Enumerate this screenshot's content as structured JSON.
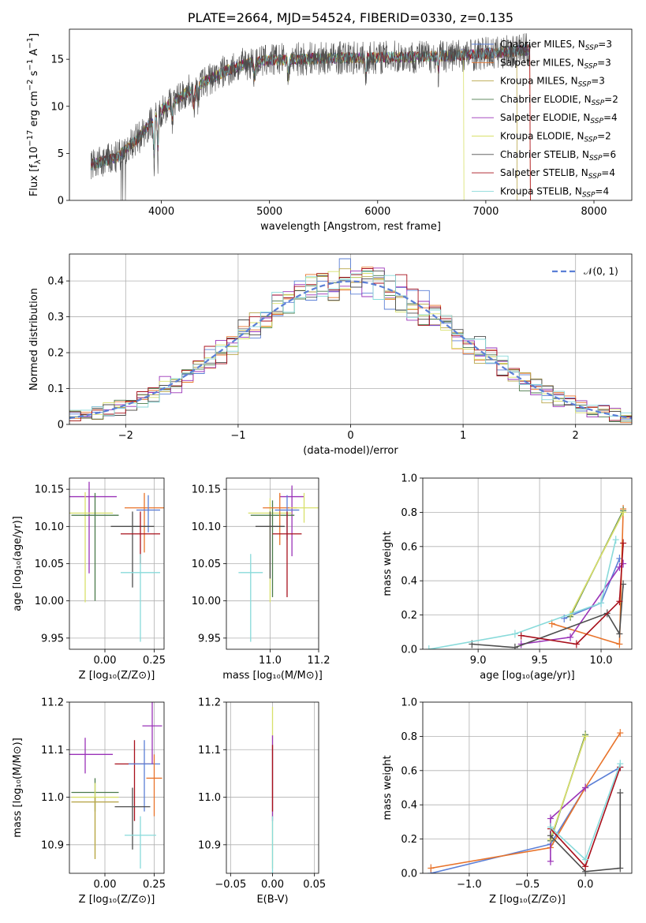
{
  "colors": {
    "Chabrier MILES": "#5b7fd6",
    "Salpeter MILES": "#e8732a",
    "Kroupa MILES": "#b8a64a",
    "Chabrier ELODIE": "#4a7a4a",
    "Salpeter ELODIE": "#9a33b8",
    "Kroupa ELODIE": "#d8e06a",
    "Chabrier STELIB": "#4d4d4d",
    "Salpeter STELIB": "#a8101c",
    "Kroupa STELIB": "#88dada"
  },
  "chart_data": [
    {
      "id": "spectrum",
      "type": "line",
      "title": "PLATE=2664, MJD=54524, FIBERID=0330, z=0.135",
      "xlabel": "wavelength [Angstrom, rest frame]",
      "ylabel_pre": "Flux [f",
      "ylabel_sub": "λ",
      "ylabel_mid": "10",
      "ylabel_sup": "−17",
      "ylabel_rest": " erg cm",
      "ylabel_sup2": "−2",
      "ylabel_rest2": " s",
      "ylabel_sup3": "−1",
      "ylabel_rest3": " A",
      "ylabel_sup4": "−1",
      "ylabel_end": "]",
      "xlim": [
        3150,
        8350
      ],
      "ylim": [
        0,
        18.2
      ],
      "xticks": [
        4000,
        5000,
        6000,
        7000,
        8000
      ],
      "yticks": [
        0,
        5,
        10,
        15
      ],
      "continuum": [
        [
          3350,
          3.8
        ],
        [
          3600,
          4.6
        ],
        [
          3800,
          6.8
        ],
        [
          4000,
          9.6
        ],
        [
          4200,
          11.2
        ],
        [
          4400,
          12.6
        ],
        [
          4600,
          13.8
        ],
        [
          4800,
          14.6
        ],
        [
          5000,
          14.9
        ],
        [
          5200,
          15.0
        ],
        [
          5500,
          15.1
        ],
        [
          6000,
          15.2
        ],
        [
          6500,
          15.3
        ],
        [
          7000,
          15.6
        ],
        [
          7400,
          16.0
        ]
      ],
      "legend": [
        {
          "label": "Chabrier MILES, N",
          "sub": "SSP",
          "end": "=3",
          "key": "Chabrier MILES"
        },
        {
          "label": "Salpeter MILES, N",
          "sub": "SSP",
          "end": "=3",
          "key": "Salpeter MILES"
        },
        {
          "label": "Kroupa MILES, N",
          "sub": "SSP",
          "end": "=3",
          "key": "Kroupa MILES"
        },
        {
          "label": "Chabrier ELODIE, N",
          "sub": "SSP",
          "end": "=2",
          "key": "Chabrier ELODIE"
        },
        {
          "label": "Salpeter ELODIE, N",
          "sub": "SSP",
          "end": "=4",
          "key": "Salpeter ELODIE"
        },
        {
          "label": "Kroupa ELODIE, N",
          "sub": "SSP",
          "end": "=2",
          "key": "Kroupa ELODIE"
        },
        {
          "label": "Chabrier STELIB, N",
          "sub": "SSP",
          "end": "=6",
          "key": "Chabrier STELIB"
        },
        {
          "label": "Salpeter STELIB, N",
          "sub": "SSP",
          "end": "=4",
          "key": "Salpeter STELIB"
        },
        {
          "label": "Kroupa STELIB, N",
          "sub": "SSP",
          "end": "=4",
          "key": "Kroupa STELIB"
        }
      ]
    },
    {
      "id": "residuals",
      "type": "line",
      "xlabel": "(data-model)/error",
      "ylabel": "Normed distribution",
      "xlim": [
        -2.5,
        2.5
      ],
      "ylim": [
        0,
        0.475
      ],
      "xticks": [
        -2,
        -1,
        0,
        1,
        2
      ],
      "yticks": [
        0.0,
        0.1,
        0.2,
        0.3,
        0.4
      ],
      "grid": true,
      "legend_label": "𝒩(0, 1)",
      "legend_placement": "top-right",
      "gaussian_color": "#5b7fd6",
      "bin_width": 0.1
    },
    {
      "id": "age-vs-z",
      "type": "scatter",
      "xlabel": "Z [log₁₀(Z/Z⊙)]",
      "ylabel": "age  [log₁₀(age/yr)]",
      "xlim": [
        -0.18,
        0.3
      ],
      "ylim": [
        9.935,
        10.165
      ],
      "xticks": [
        0.0,
        0.25
      ],
      "xticklabels": [
        "0.00",
        "0.25"
      ],
      "yticks": [
        9.95,
        10.0,
        10.05,
        10.1,
        10.15
      ],
      "yticklabels": [
        "9.95",
        "10.00",
        "10.05",
        "10.10",
        "10.15"
      ],
      "grid": true,
      "points": [
        {
          "key": "Salpeter ELODIE",
          "x": -0.08,
          "y": 10.14,
          "xerr": 0.14,
          "yerr": [
            0.103,
            0.02
          ]
        },
        {
          "key": "Kroupa ELODIE",
          "x": -0.1,
          "y": 10.118,
          "xerr": 0.14,
          "yerr": [
            0.12,
            0.028
          ]
        },
        {
          "key": "Chabrier ELODIE",
          "x": -0.05,
          "y": 10.115,
          "xerr": 0.12,
          "yerr": [
            0.115,
            0.03
          ]
        },
        {
          "key": "Salpeter MILES",
          "x": 0.2,
          "y": 10.125,
          "xerr": 0.1,
          "yerr": [
            0.06,
            0.02
          ]
        },
        {
          "key": "Chabrier MILES",
          "x": 0.22,
          "y": 10.122,
          "xerr": 0.06,
          "yerr": [
            0.03,
            0.02
          ]
        },
        {
          "key": "Chabrier STELIB",
          "x": 0.14,
          "y": 10.1,
          "xerr": 0.11,
          "yerr": [
            0.082,
            0.02
          ]
        },
        {
          "key": "Salpeter STELIB",
          "x": 0.18,
          "y": 10.09,
          "xerr": 0.1,
          "yerr": [
            0.04,
            0.03
          ]
        },
        {
          "key": "Kroupa STELIB",
          "x": 0.18,
          "y": 10.038,
          "xerr": 0.1,
          "yerr": [
            0.093,
            0.025
          ]
        }
      ]
    },
    {
      "id": "age-vs-mass",
      "type": "scatter",
      "xlabel": "mass [log₁₀(M/M⊙)]",
      "xlim": [
        10.82,
        11.2
      ],
      "ylim": [
        9.935,
        10.165
      ],
      "xticks": [
        11.0,
        11.2
      ],
      "xticklabels": [
        "11.0",
        "11.2"
      ],
      "yticks": [
        9.95,
        10.0,
        10.05,
        10.1,
        10.15
      ],
      "yticklabels": [
        "9.95",
        "10.00",
        "10.05",
        "10.10",
        "10.15"
      ],
      "grid": true,
      "points": [
        {
          "key": "Salpeter ELODIE",
          "x": 11.09,
          "y": 10.14,
          "xerr": 0.05,
          "yerr": [
            0.08,
            0.015
          ]
        },
        {
          "key": "Kroupa ELODIE",
          "x": 11.0,
          "y": 10.118,
          "xerr": 0.09,
          "yerr": [
            0.12,
            0.02
          ]
        },
        {
          "key": "Chabrier ELODIE",
          "x": 11.01,
          "y": 10.115,
          "xerr": 0.09,
          "yerr": [
            0.11,
            0.02
          ]
        },
        {
          "key": "Salpeter MILES",
          "x": 11.04,
          "y": 10.125,
          "xerr": 0.07,
          "yerr": [
            0.05,
            0.02
          ]
        },
        {
          "key": "Chabrier MILES",
          "x": 11.07,
          "y": 10.122,
          "xerr": 0.05,
          "yerr": [
            0.04,
            0.02
          ]
        },
        {
          "key": "Chabrier STELIB",
          "x": 11.0,
          "y": 10.1,
          "xerr": 0.06,
          "yerr": [
            0.07,
            0.02
          ]
        },
        {
          "key": "Salpeter STELIB",
          "x": 11.07,
          "y": 10.09,
          "xerr": 0.06,
          "yerr": [
            0.085,
            0.03
          ]
        },
        {
          "key": "Kroupa STELIB",
          "x": 10.92,
          "y": 10.038,
          "xerr": 0.05,
          "yerr": [
            0.093,
            0.025
          ]
        },
        {
          "key": "Kroupa ELODIE",
          "x": 11.14,
          "y": 10.125,
          "xerr": 0.06,
          "yerr": [
            0.02,
            0.02
          ]
        }
      ]
    },
    {
      "id": "massweight-vs-age",
      "type": "line",
      "xlabel": "age  [log₁₀(age/yr)]",
      "ylabel": "mass weight",
      "xlim": [
        8.55,
        10.25
      ],
      "ylim": [
        0.0,
        1.0
      ],
      "xticks": [
        9.0,
        9.5,
        10.0
      ],
      "xticklabels": [
        "9.0",
        "9.5",
        "10.0"
      ],
      "yticks": [
        0.0,
        0.2,
        0.4,
        0.6,
        0.8,
        1.0
      ],
      "yticklabels": [
        "0.0",
        "0.2",
        "0.4",
        "0.6",
        "0.8",
        "1.0"
      ],
      "grid": true,
      "series": [
        {
          "key": "Chabrier MILES",
          "points": [
            [
              9.7,
              0.18
            ],
            [
              10.0,
              0.27
            ],
            [
              10.15,
              0.53
            ]
          ]
        },
        {
          "key": "Salpeter MILES",
          "points": [
            [
              9.6,
              0.15
            ],
            [
              10.15,
              0.03
            ],
            [
              10.18,
              0.82
            ]
          ]
        },
        {
          "key": "Kroupa MILES",
          "points": [
            [
              9.75,
              0.2
            ],
            [
              10.18,
              0.8
            ]
          ]
        },
        {
          "key": "Chabrier ELODIE",
          "points": [
            [
              9.75,
              0.19
            ],
            [
              10.18,
              0.81
            ]
          ]
        },
        {
          "key": "Salpeter ELODIE",
          "points": [
            [
              9.35,
              0.03
            ],
            [
              9.75,
              0.07
            ],
            [
              10.15,
              0.48
            ],
            [
              10.18,
              0.5
            ]
          ]
        },
        {
          "key": "Kroupa ELODIE",
          "points": [
            [
              9.75,
              0.2
            ],
            [
              10.18,
              0.8
            ]
          ]
        },
        {
          "key": "Chabrier STELIB",
          "points": [
            [
              8.95,
              0.03
            ],
            [
              9.3,
              0.01
            ],
            [
              10.05,
              0.21
            ],
            [
              10.15,
              0.09
            ],
            [
              10.18,
              0.38
            ]
          ]
        },
        {
          "key": "Salpeter STELIB",
          "points": [
            [
              9.35,
              0.08
            ],
            [
              9.8,
              0.03
            ],
            [
              10.15,
              0.28
            ],
            [
              10.18,
              0.62
            ]
          ]
        },
        {
          "key": "Kroupa STELIB",
          "points": [
            [
              8.6,
              0.0
            ],
            [
              9.3,
              0.09
            ],
            [
              10.0,
              0.27
            ],
            [
              10.12,
              0.64
            ]
          ]
        }
      ]
    },
    {
      "id": "mass-vs-z",
      "type": "scatter",
      "xlabel": "Z [log₁₀(Z/Z⊙)]",
      "ylabel": "mass [log₁₀(M/M⊙)]",
      "xlim": [
        -0.18,
        0.3
      ],
      "ylim": [
        10.84,
        11.2
      ],
      "xticks": [
        0.0,
        0.25
      ],
      "xticklabels": [
        "0.00",
        "0.25"
      ],
      "yticks": [
        10.9,
        11.0,
        11.1,
        11.2
      ],
      "yticklabels": [
        "10.9",
        "11.0",
        "11.1",
        "11.2"
      ],
      "grid": true,
      "points": [
        {
          "key": "Salpeter ELODIE",
          "x": -0.1,
          "y": 11.09,
          "xerr": 0.14,
          "yerr": [
            0.04,
            0.035
          ]
        },
        {
          "key": "Chabrier ELODIE",
          "x": -0.05,
          "y": 11.01,
          "xerr": 0.12,
          "yerr": [
            0.04,
            0.03
          ]
        },
        {
          "key": "Kroupa ELODIE",
          "x": -0.05,
          "y": 11.0,
          "xerr": 0.12,
          "yerr": [
            0.13,
            0.03
          ]
        },
        {
          "key": "Kroupa MILES",
          "x": -0.05,
          "y": 10.99,
          "xerr": 0.12,
          "yerr": [
            0.12,
            0.01
          ]
        },
        {
          "key": "Salpeter STELIB",
          "x": 0.15,
          "y": 11.07,
          "xerr": 0.1,
          "yerr": [
            0.12,
            0.05
          ]
        },
        {
          "key": "Chabrier MILES",
          "x": 0.2,
          "y": 11.07,
          "xerr": 0.08,
          "yerr": [
            0.1,
            0.05
          ]
        },
        {
          "key": "Salpeter MILES",
          "x": 0.25,
          "y": 11.04,
          "xerr": 0.04,
          "yerr": [
            0.08,
            0.05
          ]
        },
        {
          "key": "Chabrier STELIB",
          "x": 0.14,
          "y": 10.98,
          "xerr": 0.09,
          "yerr": [
            0.09,
            0.04
          ]
        },
        {
          "key": "Kroupa STELIB",
          "x": 0.18,
          "y": 10.92,
          "xerr": 0.08,
          "yerr": [
            0.07,
            0.04
          ]
        },
        {
          "key": "Salpeter ELODIE",
          "x": 0.24,
          "y": 11.15,
          "xerr": 0.05,
          "yerr": [
            0.08,
            0.05
          ]
        }
      ]
    },
    {
      "id": "mass-vs-ebv",
      "type": "scatter",
      "xlabel": "E(B-V)",
      "xlim": [
        -0.055,
        0.055
      ],
      "ylim": [
        10.84,
        11.2
      ],
      "xticks": [
        -0.05,
        0.0,
        0.05
      ],
      "xticklabels": [
        "−0.05",
        "0.00",
        "0.05"
      ],
      "yticks": [
        10.9,
        11.0,
        11.1,
        11.2
      ],
      "yticklabels": [
        "10.9",
        "11.0",
        "11.1",
        "11.2"
      ],
      "grid": true,
      "points": [
        {
          "key": "Kroupa ELODIE",
          "x": 0.0,
          "y": 11.05,
          "xerr": 0.0,
          "yerr": [
            0.2,
            0.14
          ]
        },
        {
          "key": "Salpeter ELODIE",
          "x": 0.0,
          "y": 11.05,
          "xerr": 0.0,
          "yerr": [
            0.1,
            0.08
          ]
        },
        {
          "key": "Salpeter STELIB",
          "x": 0.0,
          "y": 11.04,
          "xerr": 0.0,
          "yerr": [
            0.07,
            0.07
          ]
        },
        {
          "key": "Kroupa STELIB",
          "x": 0.0,
          "y": 10.9,
          "xerr": 0.0,
          "yerr": [
            0.07,
            0.06
          ]
        }
      ]
    },
    {
      "id": "massweight-vs-z",
      "type": "line",
      "xlabel": "Z [log₁₀(Z/Z⊙)]",
      "ylabel": "mass weight",
      "xlim": [
        -1.4,
        0.4
      ],
      "ylim": [
        0.0,
        1.0
      ],
      "xticks": [
        -1.0,
        -0.5,
        0.0
      ],
      "xticklabels": [
        "−1.0",
        "−0.5",
        "0.0"
      ],
      "yticks": [
        0.0,
        0.2,
        0.4,
        0.6,
        0.8,
        1.0
      ],
      "yticklabels": [
        "0.0",
        "0.2",
        "0.4",
        "0.6",
        "0.8",
        "1.0"
      ],
      "grid": true,
      "series": [
        {
          "key": "Chabrier MILES",
          "points": [
            [
              -1.33,
              0.0
            ],
            [
              -0.3,
              0.17
            ],
            [
              0.0,
              0.5
            ],
            [
              0.3,
              0.62
            ]
          ]
        },
        {
          "key": "Salpeter MILES",
          "points": [
            [
              -1.33,
              0.03
            ],
            [
              -0.3,
              0.15
            ],
            [
              0.0,
              0.5
            ],
            [
              0.3,
              0.82
            ]
          ]
        },
        {
          "key": "Kroupa MILES",
          "points": [
            [
              -0.3,
              0.2
            ],
            [
              0.0,
              0.8
            ]
          ]
        },
        {
          "key": "Chabrier ELODIE",
          "points": [
            [
              -0.3,
              0.19
            ],
            [
              0.0,
              0.81
            ]
          ]
        },
        {
          "key": "Salpeter ELODIE",
          "points": [
            [
              -0.3,
              0.07
            ],
            [
              -0.3,
              0.32
            ],
            [
              0.0,
              0.5
            ]
          ]
        },
        {
          "key": "Kroupa ELODIE",
          "points": [
            [
              -0.3,
              0.2
            ],
            [
              0.0,
              0.8
            ]
          ]
        },
        {
          "key": "Chabrier STELIB",
          "points": [
            [
              -0.3,
              0.22
            ],
            [
              0.0,
              0.01
            ],
            [
              0.3,
              0.03
            ],
            [
              0.3,
              0.47
            ]
          ]
        },
        {
          "key": "Salpeter STELIB",
          "points": [
            [
              -0.3,
              0.26
            ],
            [
              0.0,
              0.04
            ],
            [
              0.3,
              0.62
            ]
          ]
        },
        {
          "key": "Kroupa STELIB",
          "points": [
            [
              -0.3,
              0.27
            ],
            [
              0.0,
              0.08
            ],
            [
              0.3,
              0.64
            ]
          ]
        }
      ]
    }
  ]
}
